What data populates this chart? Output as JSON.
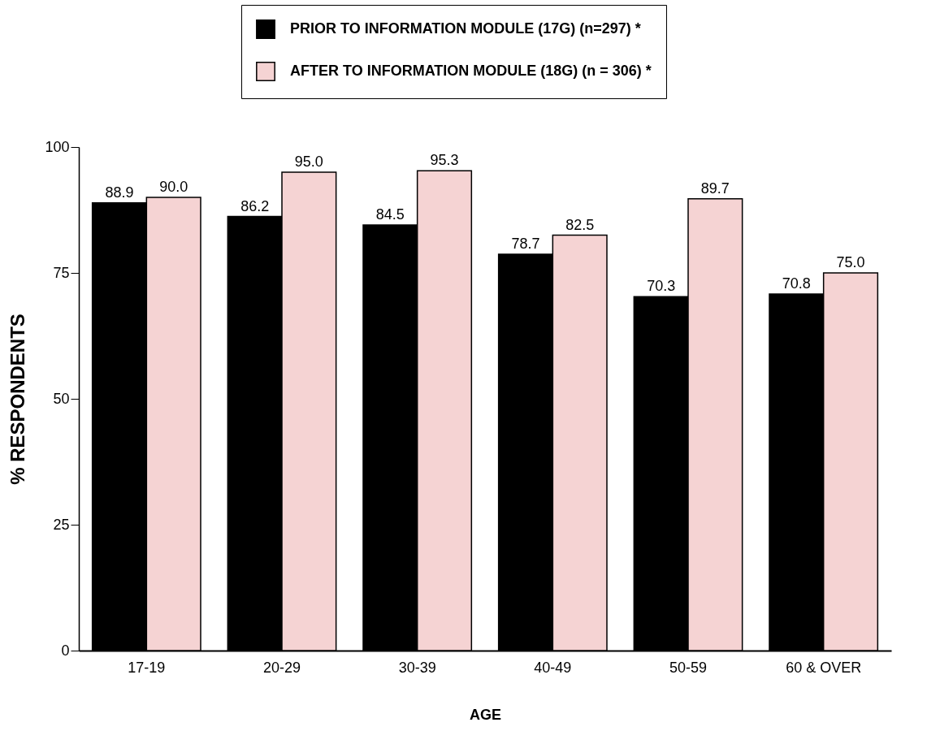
{
  "chart_data": {
    "type": "bar",
    "xlabel": "AGE",
    "ylabel": "% RESPONDENTS",
    "categories": [
      "17-19",
      "20-29",
      "30-39",
      "40-49",
      "50-59",
      "60 & OVER"
    ],
    "series": [
      {
        "name": "PRIOR TO INFORMATION MODULE (17G) (n=297) *",
        "color": "#000000",
        "values": [
          88.9,
          86.2,
          84.5,
          78.7,
          70.3,
          70.8
        ],
        "value_labels": [
          "88.9",
          "86.2",
          "84.5",
          "78.7",
          "70.3",
          "70.8"
        ]
      },
      {
        "name": "AFTER TO INFORMATION MODULE (18G) (n = 306) *",
        "color": "#f5d3d3",
        "values": [
          90.0,
          95.0,
          95.3,
          82.5,
          89.7,
          75.0
        ],
        "value_labels": [
          "90.0",
          "95.0",
          "95.3",
          "82.5",
          "89.7",
          "75.0"
        ]
      }
    ],
    "ylim": [
      0,
      100
    ],
    "yticks": [
      0,
      25,
      50,
      75,
      100
    ],
    "grid": false,
    "legend": "top right"
  }
}
